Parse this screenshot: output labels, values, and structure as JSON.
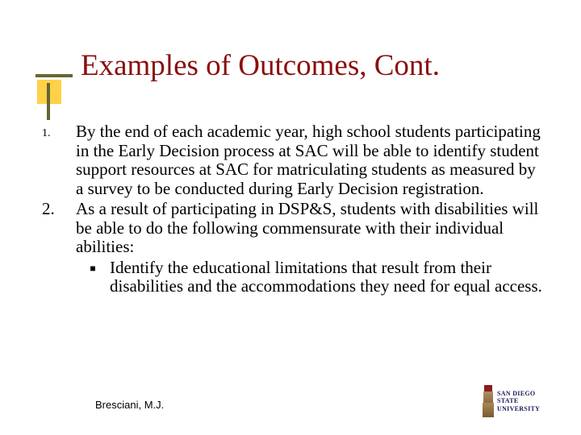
{
  "title": "Examples of Outcomes, Cont.",
  "items": [
    {
      "num": "1.",
      "text": "By the end of each academic year, high school students participating in the Early Decision process at SAC will be able to identify student support resources at SAC for matriculating students as measured by a survey to be conducted during Early Decision registration."
    },
    {
      "num": "2.",
      "text": "As a result of participating in DSP&S, students with disabilities will be able to do the following commensurate with their individual abilities:"
    }
  ],
  "subitem": {
    "bullet": "■",
    "text": "Identify the educational limitations that result from their disabilities and the accommodations they need for equal access."
  },
  "footer": {
    "author": "Bresciani, M.J."
  },
  "logo": {
    "line1": "SAN DIEGO STATE",
    "line2": "UNIVERSITY"
  },
  "colors": {
    "title": "#8a0e0e",
    "accent_box": "#ffcc33",
    "accent_bar": "#666633",
    "background": "#ffffff"
  }
}
